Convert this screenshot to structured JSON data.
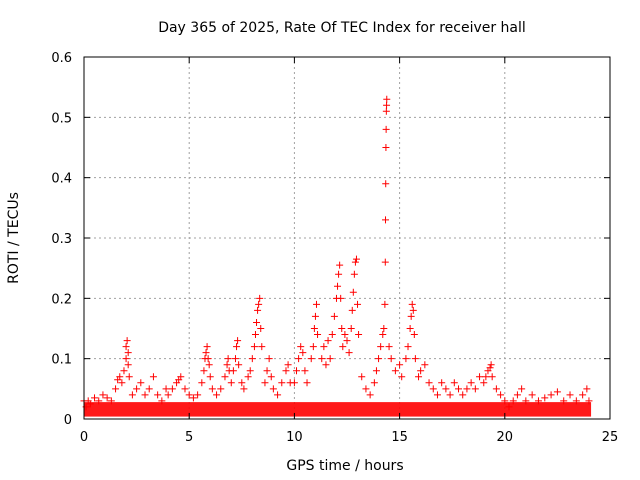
{
  "chart_data": {
    "type": "scatter",
    "title": "Day 365 of 2025, Rate Of TEC Index for receiver hall",
    "xlabel": "GPS time / hours",
    "ylabel": "ROTI / TECUs",
    "xlim": [
      0,
      25
    ],
    "ylim": [
      0,
      0.6
    ],
    "xticks": [
      0,
      5,
      10,
      15,
      20,
      25
    ],
    "yticks": [
      0,
      0.1,
      0.2,
      0.3,
      0.4,
      0.5,
      0.6
    ],
    "xtick_labels": [
      "0",
      "5",
      "10",
      "15",
      "20",
      "25"
    ],
    "ytick_labels": [
      "0",
      "0.1",
      "0.2",
      "0.3",
      "0.4",
      "0.5",
      "0.6"
    ],
    "grid": true,
    "marker": "+",
    "color": "#ff0000",
    "series": [
      {
        "points": [
          [
            0.0,
            0.03
          ],
          [
            0.1,
            0.02
          ],
          [
            0.2,
            0.03
          ],
          [
            0.3,
            0.025
          ],
          [
            0.5,
            0.035
          ],
          [
            0.7,
            0.03
          ],
          [
            0.9,
            0.04
          ],
          [
            1.1,
            0.035
          ],
          [
            1.3,
            0.03
          ],
          [
            1.5,
            0.05
          ],
          [
            1.6,
            0.065
          ],
          [
            1.7,
            0.07
          ],
          [
            1.8,
            0.06
          ],
          [
            1.9,
            0.08
          ],
          [
            2.0,
            0.1
          ],
          [
            2.0,
            0.12
          ],
          [
            2.05,
            0.13
          ],
          [
            2.1,
            0.11
          ],
          [
            2.1,
            0.09
          ],
          [
            2.15,
            0.07
          ],
          [
            2.3,
            0.04
          ],
          [
            2.5,
            0.05
          ],
          [
            2.7,
            0.06
          ],
          [
            2.9,
            0.04
          ],
          [
            3.1,
            0.05
          ],
          [
            3.3,
            0.07
          ],
          [
            3.5,
            0.04
          ],
          [
            3.7,
            0.03
          ],
          [
            3.9,
            0.05
          ],
          [
            4.0,
            0.04
          ],
          [
            4.2,
            0.05
          ],
          [
            4.4,
            0.06
          ],
          [
            4.5,
            0.065
          ],
          [
            4.6,
            0.07
          ],
          [
            4.8,
            0.05
          ],
          [
            5.0,
            0.04
          ],
          [
            5.2,
            0.035
          ],
          [
            5.4,
            0.04
          ],
          [
            5.6,
            0.06
          ],
          [
            5.7,
            0.08
          ],
          [
            5.75,
            0.1
          ],
          [
            5.8,
            0.11
          ],
          [
            5.85,
            0.12
          ],
          [
            5.9,
            0.1
          ],
          [
            5.95,
            0.09
          ],
          [
            6.0,
            0.07
          ],
          [
            6.1,
            0.05
          ],
          [
            6.3,
            0.04
          ],
          [
            6.5,
            0.05
          ],
          [
            6.7,
            0.07
          ],
          [
            6.8,
            0.09
          ],
          [
            6.85,
            0.1
          ],
          [
            6.9,
            0.08
          ],
          [
            7.0,
            0.06
          ],
          [
            7.1,
            0.08
          ],
          [
            7.2,
            0.1
          ],
          [
            7.25,
            0.12
          ],
          [
            7.3,
            0.13
          ],
          [
            7.35,
            0.09
          ],
          [
            7.5,
            0.06
          ],
          [
            7.6,
            0.05
          ],
          [
            7.8,
            0.07
          ],
          [
            7.9,
            0.08
          ],
          [
            8.0,
            0.1
          ],
          [
            8.1,
            0.12
          ],
          [
            8.15,
            0.14
          ],
          [
            8.2,
            0.16
          ],
          [
            8.25,
            0.18
          ],
          [
            8.3,
            0.19
          ],
          [
            8.35,
            0.2
          ],
          [
            8.4,
            0.15
          ],
          [
            8.45,
            0.12
          ],
          [
            8.6,
            0.06
          ],
          [
            8.7,
            0.08
          ],
          [
            8.8,
            0.1
          ],
          [
            8.9,
            0.07
          ],
          [
            9.0,
            0.05
          ],
          [
            9.2,
            0.04
          ],
          [
            9.4,
            0.06
          ],
          [
            9.6,
            0.08
          ],
          [
            9.7,
            0.09
          ],
          [
            9.8,
            0.06
          ],
          [
            10.0,
            0.06
          ],
          [
            10.1,
            0.08
          ],
          [
            10.2,
            0.1
          ],
          [
            10.3,
            0.12
          ],
          [
            10.4,
            0.11
          ],
          [
            10.5,
            0.08
          ],
          [
            10.6,
            0.06
          ],
          [
            10.8,
            0.1
          ],
          [
            10.9,
            0.12
          ],
          [
            10.95,
            0.15
          ],
          [
            11.0,
            0.17
          ],
          [
            11.05,
            0.19
          ],
          [
            11.1,
            0.14
          ],
          [
            11.3,
            0.1
          ],
          [
            11.4,
            0.12
          ],
          [
            11.5,
            0.09
          ],
          [
            11.6,
            0.13
          ],
          [
            11.7,
            0.1
          ],
          [
            11.8,
            0.14
          ],
          [
            11.9,
            0.17
          ],
          [
            12.0,
            0.2
          ],
          [
            12.05,
            0.22
          ],
          [
            12.1,
            0.24
          ],
          [
            12.15,
            0.255
          ],
          [
            12.2,
            0.2
          ],
          [
            12.25,
            0.15
          ],
          [
            12.3,
            0.12
          ],
          [
            12.4,
            0.14
          ],
          [
            12.5,
            0.13
          ],
          [
            12.6,
            0.11
          ],
          [
            12.7,
            0.15
          ],
          [
            12.75,
            0.18
          ],
          [
            12.8,
            0.21
          ],
          [
            12.85,
            0.24
          ],
          [
            12.9,
            0.26
          ],
          [
            12.95,
            0.265
          ],
          [
            13.0,
            0.19
          ],
          [
            13.05,
            0.14
          ],
          [
            13.2,
            0.07
          ],
          [
            13.4,
            0.05
          ],
          [
            13.6,
            0.04
          ],
          [
            13.8,
            0.06
          ],
          [
            13.9,
            0.08
          ],
          [
            14.0,
            0.1
          ],
          [
            14.1,
            0.12
          ],
          [
            14.2,
            0.14
          ],
          [
            14.25,
            0.15
          ],
          [
            14.3,
            0.19
          ],
          [
            14.32,
            0.26
          ],
          [
            14.33,
            0.33
          ],
          [
            14.34,
            0.39
          ],
          [
            14.35,
            0.45
          ],
          [
            14.36,
            0.48
          ],
          [
            14.37,
            0.51
          ],
          [
            14.38,
            0.52
          ],
          [
            14.39,
            0.53
          ],
          [
            14.5,
            0.12
          ],
          [
            14.6,
            0.1
          ],
          [
            14.8,
            0.08
          ],
          [
            15.0,
            0.09
          ],
          [
            15.1,
            0.07
          ],
          [
            15.3,
            0.1
          ],
          [
            15.4,
            0.12
          ],
          [
            15.5,
            0.15
          ],
          [
            15.55,
            0.17
          ],
          [
            15.6,
            0.19
          ],
          [
            15.65,
            0.18
          ],
          [
            15.7,
            0.14
          ],
          [
            15.75,
            0.1
          ],
          [
            15.9,
            0.07
          ],
          [
            16.0,
            0.08
          ],
          [
            16.2,
            0.09
          ],
          [
            16.4,
            0.06
          ],
          [
            16.6,
            0.05
          ],
          [
            16.8,
            0.04
          ],
          [
            17.0,
            0.06
          ],
          [
            17.2,
            0.05
          ],
          [
            17.4,
            0.04
          ],
          [
            17.6,
            0.06
          ],
          [
            17.8,
            0.05
          ],
          [
            18.0,
            0.04
          ],
          [
            18.2,
            0.05
          ],
          [
            18.4,
            0.06
          ],
          [
            18.6,
            0.05
          ],
          [
            18.8,
            0.07
          ],
          [
            19.0,
            0.06
          ],
          [
            19.1,
            0.07
          ],
          [
            19.2,
            0.08
          ],
          [
            19.3,
            0.085
          ],
          [
            19.35,
            0.09
          ],
          [
            19.4,
            0.07
          ],
          [
            19.6,
            0.05
          ],
          [
            19.8,
            0.04
          ],
          [
            20.0,
            0.03
          ],
          [
            20.2,
            0.02
          ],
          [
            20.4,
            0.03
          ],
          [
            20.6,
            0.04
          ],
          [
            20.8,
            0.05
          ],
          [
            21.0,
            0.03
          ],
          [
            21.3,
            0.04
          ],
          [
            21.6,
            0.03
          ],
          [
            21.9,
            0.035
          ],
          [
            22.2,
            0.04
          ],
          [
            22.5,
            0.045
          ],
          [
            22.8,
            0.03
          ],
          [
            23.1,
            0.04
          ],
          [
            23.4,
            0.03
          ],
          [
            23.7,
            0.04
          ],
          [
            23.9,
            0.05
          ],
          [
            24.0,
            0.03
          ]
        ]
      }
    ]
  }
}
